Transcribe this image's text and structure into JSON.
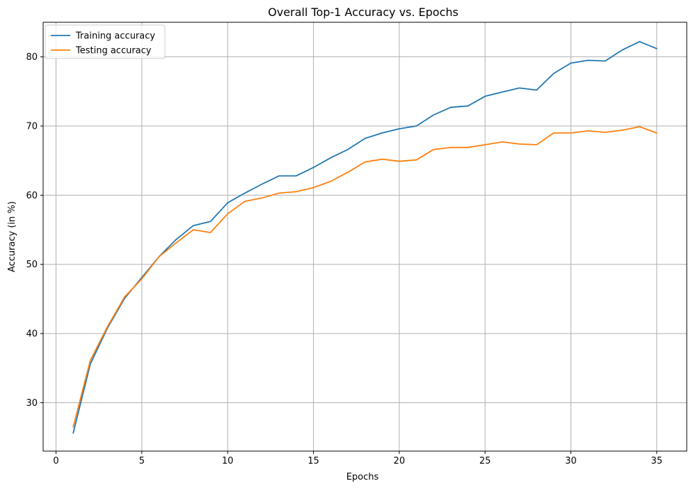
{
  "chart_data": {
    "type": "line",
    "title": "Overall Top-1 Accuracy vs. Epochs",
    "xlabel": "Epochs",
    "ylabel": "Accuracy (in %)",
    "xlim": [
      -0.75,
      36.75
    ],
    "ylim": [
      23,
      85
    ],
    "xticks": [
      0,
      5,
      10,
      15,
      20,
      25,
      30,
      35
    ],
    "yticks": [
      30,
      40,
      50,
      60,
      70,
      80
    ],
    "grid": true,
    "legend_position": "top-left",
    "x": [
      1,
      2,
      3,
      4,
      5,
      6,
      7,
      8,
      9,
      10,
      11,
      12,
      13,
      14,
      15,
      16,
      17,
      18,
      19,
      20,
      21,
      22,
      23,
      24,
      25,
      26,
      27,
      28,
      29,
      30,
      31,
      32,
      33,
      34,
      35
    ],
    "series": [
      {
        "name": "Training accuracy",
        "color": "#1f77b4",
        "values": [
          25.6,
          35.6,
          40.8,
          45.1,
          48.1,
          51.1,
          53.6,
          55.6,
          56.2,
          58.9,
          60.3,
          61.6,
          62.8,
          62.8,
          64.0,
          65.4,
          66.6,
          68.2,
          69.0,
          69.6,
          70.0,
          71.6,
          72.7,
          72.9,
          74.3,
          74.9,
          75.5,
          75.2,
          77.6,
          79.1,
          79.5,
          79.4,
          81.0,
          82.2,
          81.2
        ]
      },
      {
        "name": "Testing accuracy",
        "color": "#ff7f0e",
        "values": [
          26.5,
          36.1,
          41.0,
          45.3,
          47.9,
          51.1,
          53.1,
          55.0,
          54.6,
          57.3,
          59.1,
          59.6,
          60.3,
          60.5,
          61.1,
          62.0,
          63.3,
          64.8,
          65.2,
          64.9,
          65.1,
          66.6,
          66.9,
          66.9,
          67.3,
          67.7,
          67.4,
          67.3,
          69.0,
          69.0,
          69.3,
          69.1,
          69.4,
          69.9,
          69.0
        ]
      }
    ]
  }
}
